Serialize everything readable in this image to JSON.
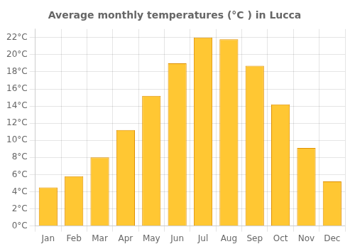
{
  "chart_data": {
    "type": "bar",
    "title": "Average monthly temperatures (°C ) in Lucca",
    "categories": [
      "Jan",
      "Feb",
      "Mar",
      "Apr",
      "May",
      "Jun",
      "Jul",
      "Aug",
      "Sep",
      "Oct",
      "Nov",
      "Dec"
    ],
    "values": [
      4.5,
      5.8,
      8.0,
      11.2,
      15.2,
      19.0,
      22.0,
      21.8,
      18.7,
      14.2,
      9.1,
      5.2
    ],
    "color": "#FFC733",
    "ylim": [
      0,
      23
    ],
    "yticks": [
      {
        "value": 0,
        "label": "0°C"
      },
      {
        "value": 2,
        "label": "2°C"
      },
      {
        "value": 4,
        "label": "4°C"
      },
      {
        "value": 6,
        "label": "6°C"
      },
      {
        "value": 8,
        "label": "8°C"
      },
      {
        "value": 10,
        "label": "10°C"
      },
      {
        "value": 12,
        "label": "12°C"
      },
      {
        "value": 14,
        "label": "14°C"
      },
      {
        "value": 16,
        "label": "16°C"
      },
      {
        "value": 18,
        "label": "18°C"
      },
      {
        "value": 20,
        "label": "20°C"
      },
      {
        "value": 22,
        "label": "22°C"
      }
    ],
    "grid": true
  }
}
